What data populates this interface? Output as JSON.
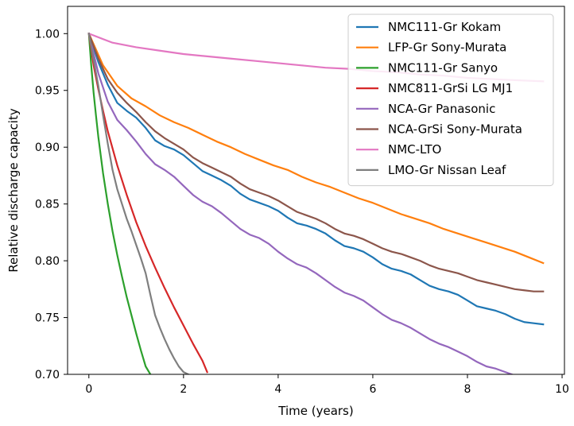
{
  "chart_data": {
    "type": "line",
    "title": "",
    "xlabel": "Time (years)",
    "ylabel": "Relative discharge capacity",
    "xlim": [
      -0.45,
      10.05
    ],
    "ylim": [
      0.7,
      1.024
    ],
    "xticks": [
      0,
      2,
      4,
      6,
      8,
      10
    ],
    "yticks": [
      0.7,
      0.75,
      0.8,
      0.85,
      0.9,
      0.95,
      1.0
    ],
    "grid": false,
    "legend_position": "top-right",
    "series": [
      {
        "name": "NMC111-Gr Kokam",
        "color": "#1f77b4",
        "x": [
          0,
          0.2,
          0.4,
          0.6,
          0.8,
          1.0,
          1.2,
          1.4,
          1.6,
          1.8,
          2.0,
          2.2,
          2.4,
          2.6,
          2.8,
          3.0,
          3.2,
          3.4,
          3.6,
          3.8,
          4.0,
          4.2,
          4.4,
          4.6,
          4.8,
          5.0,
          5.2,
          5.4,
          5.6,
          5.8,
          6.0,
          6.2,
          6.4,
          6.6,
          6.8,
          7.0,
          7.2,
          7.4,
          7.6,
          7.8,
          8.0,
          8.2,
          8.4,
          8.6,
          8.8,
          9.0,
          9.2,
          9.4,
          9.6
        ],
        "y": [
          1.0,
          0.975,
          0.955,
          0.939,
          0.932,
          0.926,
          0.917,
          0.906,
          0.901,
          0.898,
          0.893,
          0.886,
          0.879,
          0.875,
          0.871,
          0.866,
          0.859,
          0.854,
          0.851,
          0.848,
          0.844,
          0.838,
          0.833,
          0.831,
          0.828,
          0.824,
          0.818,
          0.813,
          0.811,
          0.808,
          0.803,
          0.797,
          0.793,
          0.791,
          0.788,
          0.783,
          0.778,
          0.775,
          0.773,
          0.77,
          0.765,
          0.76,
          0.758,
          0.756,
          0.753,
          0.749,
          0.746,
          0.745,
          0.744
        ]
      },
      {
        "name": "LFP-Gr Sony-Murata",
        "color": "#ff7f0e",
        "x": [
          0,
          0.3,
          0.6,
          0.9,
          1.2,
          1.5,
          1.8,
          2.1,
          2.4,
          2.7,
          3.0,
          3.3,
          3.6,
          3.9,
          4.2,
          4.5,
          4.8,
          5.1,
          5.4,
          5.7,
          6.0,
          6.3,
          6.6,
          6.9,
          7.2,
          7.5,
          7.8,
          8.1,
          8.4,
          8.7,
          9.0,
          9.3,
          9.6
        ],
        "y": [
          1.0,
          0.972,
          0.954,
          0.943,
          0.936,
          0.928,
          0.922,
          0.917,
          0.911,
          0.905,
          0.9,
          0.894,
          0.889,
          0.884,
          0.88,
          0.874,
          0.869,
          0.865,
          0.86,
          0.855,
          0.851,
          0.846,
          0.841,
          0.837,
          0.833,
          0.828,
          0.824,
          0.82,
          0.816,
          0.812,
          0.808,
          0.803,
          0.798
        ]
      },
      {
        "name": "NMC111-Gr Sanyo",
        "color": "#2ca02c",
        "x": [
          0,
          0.05,
          0.1,
          0.15,
          0.2,
          0.3,
          0.4,
          0.5,
          0.6,
          0.7,
          0.8,
          0.9,
          1.0,
          1.1,
          1.2,
          1.3
        ],
        "y": [
          1.0,
          0.972,
          0.948,
          0.928,
          0.909,
          0.877,
          0.85,
          0.826,
          0.805,
          0.786,
          0.768,
          0.752,
          0.736,
          0.721,
          0.707,
          0.7
        ]
      },
      {
        "name": "NMC811-GrSi LG MJ1",
        "color": "#d62728",
        "x": [
          0,
          0.1,
          0.2,
          0.3,
          0.4,
          0.6,
          0.8,
          1.0,
          1.2,
          1.4,
          1.6,
          1.8,
          2.0,
          2.2,
          2.4,
          2.5
        ],
        "y": [
          1.0,
          0.972,
          0.951,
          0.932,
          0.914,
          0.884,
          0.858,
          0.834,
          0.813,
          0.794,
          0.776,
          0.759,
          0.743,
          0.727,
          0.712,
          0.702
        ]
      },
      {
        "name": "NCA-Gr Panasonic",
        "color": "#9467bd",
        "x": [
          0,
          0.2,
          0.4,
          0.6,
          0.8,
          1.0,
          1.2,
          1.4,
          1.6,
          1.8,
          2.0,
          2.2,
          2.4,
          2.6,
          2.8,
          3.0,
          3.2,
          3.4,
          3.6,
          3.8,
          4.0,
          4.2,
          4.4,
          4.6,
          4.8,
          5.0,
          5.2,
          5.4,
          5.6,
          5.8,
          6.0,
          6.2,
          6.4,
          6.6,
          6.8,
          7.0,
          7.2,
          7.4,
          7.6,
          7.8,
          8.0,
          8.2,
          8.4,
          8.6,
          8.8,
          9.0,
          9.2,
          9.4,
          9.6
        ],
        "y": [
          1.0,
          0.965,
          0.94,
          0.924,
          0.915,
          0.905,
          0.894,
          0.885,
          0.88,
          0.874,
          0.866,
          0.858,
          0.852,
          0.848,
          0.842,
          0.835,
          0.828,
          0.823,
          0.82,
          0.815,
          0.808,
          0.802,
          0.797,
          0.794,
          0.789,
          0.783,
          0.777,
          0.772,
          0.769,
          0.765,
          0.759,
          0.753,
          0.748,
          0.745,
          0.741,
          0.736,
          0.731,
          0.727,
          0.724,
          0.72,
          0.716,
          0.711,
          0.707,
          0.705,
          0.702,
          0.699,
          0.698,
          0.698,
          0.698
        ]
      },
      {
        "name": "NCA-GrSi Sony-Murata",
        "color": "#8c564b",
        "x": [
          0,
          0.2,
          0.4,
          0.6,
          0.8,
          1.0,
          1.2,
          1.4,
          1.6,
          1.8,
          2.0,
          2.2,
          2.4,
          2.6,
          2.8,
          3.0,
          3.2,
          3.4,
          3.6,
          3.8,
          4.0,
          4.2,
          4.4,
          4.6,
          4.8,
          5.0,
          5.2,
          5.4,
          5.6,
          5.8,
          6.0,
          6.2,
          6.4,
          6.6,
          6.8,
          7.0,
          7.2,
          7.4,
          7.6,
          7.8,
          8.0,
          8.2,
          8.4,
          8.6,
          8.8,
          9.0,
          9.2,
          9.4,
          9.6
        ],
        "y": [
          1.0,
          0.978,
          0.96,
          0.948,
          0.939,
          0.931,
          0.922,
          0.914,
          0.908,
          0.903,
          0.898,
          0.891,
          0.886,
          0.882,
          0.878,
          0.874,
          0.868,
          0.863,
          0.86,
          0.857,
          0.853,
          0.848,
          0.843,
          0.84,
          0.837,
          0.833,
          0.828,
          0.824,
          0.822,
          0.819,
          0.815,
          0.811,
          0.808,
          0.806,
          0.803,
          0.8,
          0.796,
          0.793,
          0.791,
          0.789,
          0.786,
          0.783,
          0.781,
          0.779,
          0.777,
          0.775,
          0.774,
          0.773,
          0.773
        ]
      },
      {
        "name": "NMC-LTO",
        "color": "#e377c2",
        "x": [
          0,
          0.5,
          1.0,
          1.5,
          2.0,
          2.5,
          3.0,
          3.5,
          4.0,
          4.5,
          5.0,
          5.5,
          6.0,
          6.5,
          7.0,
          7.5,
          8.0,
          8.5,
          9.0,
          9.6
        ],
        "y": [
          1.0,
          0.992,
          0.988,
          0.985,
          0.982,
          0.98,
          0.978,
          0.976,
          0.974,
          0.972,
          0.97,
          0.969,
          0.967,
          0.966,
          0.964,
          0.963,
          0.961,
          0.96,
          0.959,
          0.958
        ]
      },
      {
        "name": "LMO-Gr Nissan Leaf",
        "color": "#7f7f7f",
        "x": [
          0,
          0.1,
          0.2,
          0.3,
          0.4,
          0.5,
          0.6,
          0.7,
          0.8,
          0.9,
          1.0,
          1.1,
          1.2,
          1.3,
          1.4,
          1.5,
          1.6,
          1.7,
          1.8,
          1.9,
          2.0,
          2.1
        ],
        "y": [
          1.0,
          0.977,
          0.954,
          0.928,
          0.903,
          0.88,
          0.863,
          0.85,
          0.837,
          0.826,
          0.814,
          0.802,
          0.789,
          0.77,
          0.752,
          0.741,
          0.731,
          0.722,
          0.714,
          0.707,
          0.702,
          0.7
        ]
      }
    ]
  }
}
